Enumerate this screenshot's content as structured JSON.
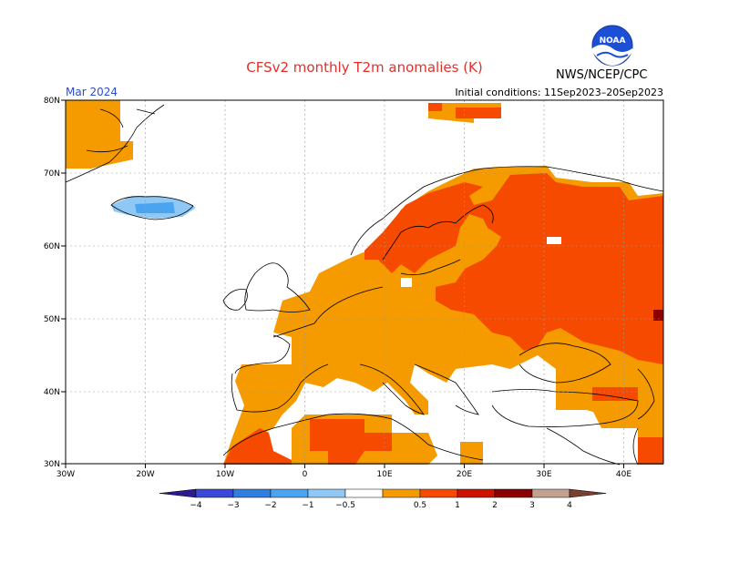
{
  "title": "CFSv2 monthly T2m anomalies (K)",
  "organization": "NWS/NCEP/CPC",
  "month": "Mar 2024",
  "initial_conditions": "Initial conditions: 11Sep2023–20Sep2023",
  "logo_text": "NOAA",
  "colors": {
    "title": "#e0302a",
    "month": "#2a4dcc",
    "land_outline": "#000000",
    "grid": "#999999"
  },
  "lon_ticks": [
    "30W",
    "20W",
    "10W",
    "0",
    "10E",
    "20E",
    "30E",
    "40E"
  ],
  "lat_ticks": [
    "80N",
    "70N",
    "60N",
    "50N",
    "40N",
    "30N"
  ],
  "legend": {
    "labels": [
      "−4",
      "−3",
      "−2",
      "−1",
      "−0.5",
      "0.5",
      "1",
      "2",
      "3",
      "4"
    ],
    "colors": [
      "#2b1b8f",
      "#3b49d8",
      "#2f7fe0",
      "#4aa4ef",
      "#8fc8f5",
      "#ffffff",
      "#f59b00",
      "#f54a00",
      "#cc1400",
      "#8b0000",
      "#c4a090",
      "#7a4030"
    ]
  }
}
